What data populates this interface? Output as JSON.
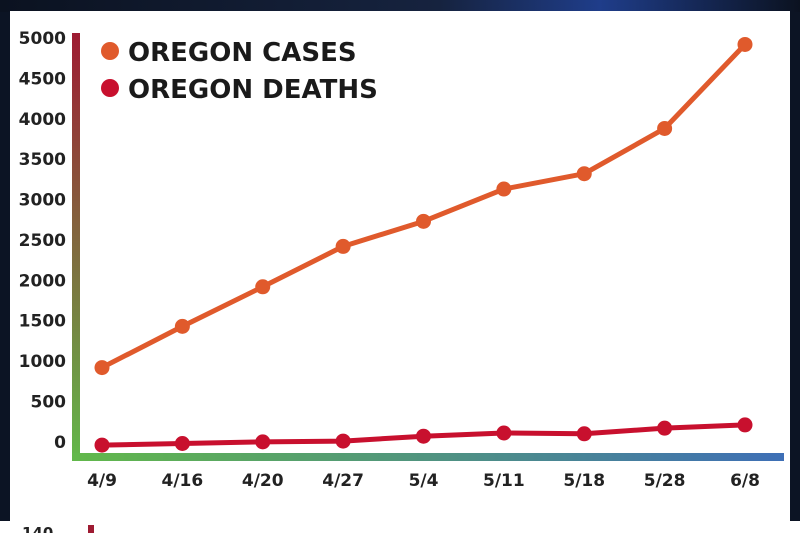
{
  "chart_data": {
    "type": "line",
    "categories": [
      "4/9",
      "4/16",
      "4/20",
      "4/27",
      "5/4",
      "5/11",
      "5/18",
      "5/28",
      "6/8"
    ],
    "series": [
      {
        "name": "OREGON CASES",
        "color": "#e05a2c",
        "values": [
          920,
          1430,
          1920,
          2420,
          2730,
          3130,
          3320,
          3880,
          4920
        ]
      },
      {
        "name": "OREGON DEATHS",
        "color": "#c8102e",
        "values": [
          -40,
          -20,
          0,
          10,
          70,
          110,
          100,
          170,
          210
        ]
      }
    ],
    "yticks": [
      5000,
      4500,
      4000,
      3500,
      3000,
      2500,
      2000,
      1500,
      1000,
      500,
      0
    ],
    "ylim": [
      -150,
      5000
    ],
    "axis_colors": {
      "left_top": "#9e1b32",
      "left_bottom": "#62b84a",
      "bottom_left": "#62b84a",
      "bottom_right": "#3e6fb6"
    },
    "grid": false,
    "legend_position": "top-left"
  },
  "next_chart": {
    "top_tick": "140"
  }
}
